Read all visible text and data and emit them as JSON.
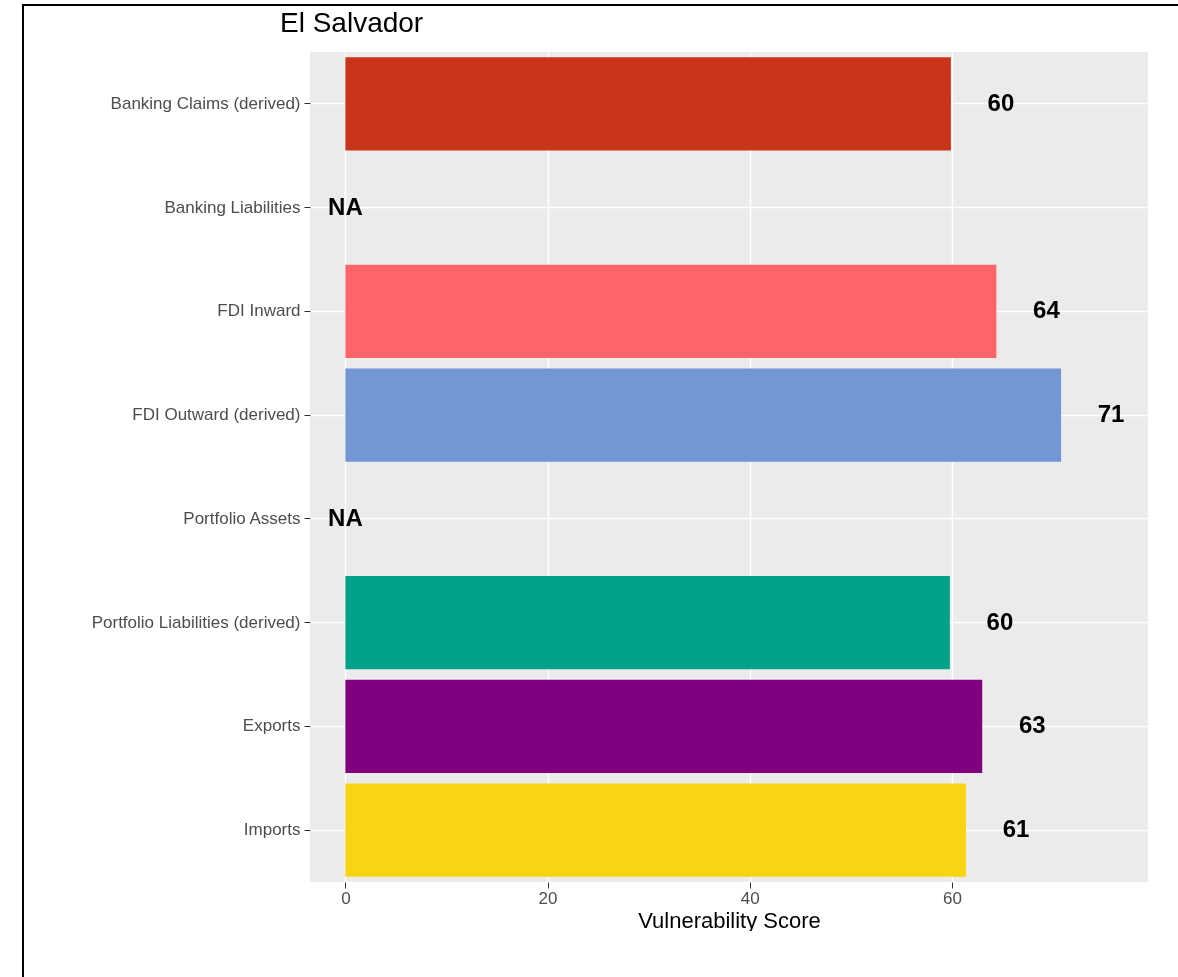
{
  "chart_data": {
    "type": "bar",
    "orientation": "horizontal",
    "title": "El Salvador",
    "xlabel": "Vulnerability Score",
    "categories": [
      "Banking Claims (derived)",
      "Banking Liabilities",
      "FDI Inward",
      "FDI Outward (derived)",
      "Portfolio Assets",
      "Portfolio Liabilities (derived)",
      "Exports",
      "Imports"
    ],
    "values": [
      59.9,
      null,
      64.4,
      70.8,
      null,
      59.8,
      63.0,
      61.4
    ],
    "colors": [
      "#c9341a",
      null,
      "#ff6468",
      "#7396d4",
      null,
      "#00a38a",
      "#800080",
      "#f9d413"
    ],
    "value_labels": [
      "60",
      "NA",
      "64",
      "71",
      "NA",
      "60",
      "63",
      "61"
    ],
    "xlim": [
      -3.5,
      79.4
    ],
    "xticks": [
      0,
      20,
      40,
      60
    ],
    "grid": true
  }
}
